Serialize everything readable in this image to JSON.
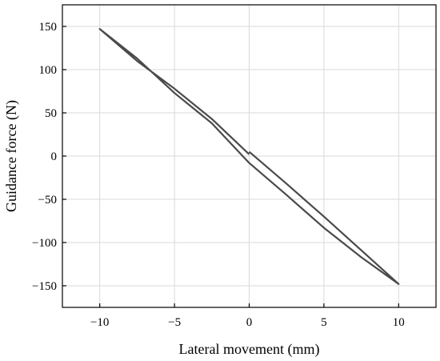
{
  "chart_data": {
    "type": "line",
    "xlabel": "Lateral movement (mm)",
    "ylabel": "Guidance force (N)",
    "xlim": [
      -12.5,
      12.5
    ],
    "ylim": [
      -175,
      175
    ],
    "xticks": [
      -10,
      -5,
      0,
      5,
      10
    ],
    "yticks": [
      -150,
      -100,
      -50,
      0,
      50,
      100,
      150
    ],
    "xtick_labels": [
      "−10",
      "−5",
      "0",
      "5",
      "10"
    ],
    "ytick_labels": [
      "−150",
      "−100",
      "−50",
      "0",
      "50",
      "100",
      "150"
    ],
    "grid": true,
    "line_color": "#4a4a4a",
    "grid_color": "#d9d9d9",
    "series": [
      {
        "x": [
          0,
          2.5,
          5,
          7.5,
          10,
          7.5,
          5,
          2.5,
          0,
          -2.5,
          -5,
          -7.5,
          -10,
          -7.5,
          -5,
          -2.5,
          0
        ],
        "y": [
          5,
          -32,
          -70,
          -109,
          -148,
          -117,
          -83,
          -45,
          -8,
          38,
          73,
          113,
          147,
          110,
          78,
          43,
          2
        ]
      }
    ]
  }
}
